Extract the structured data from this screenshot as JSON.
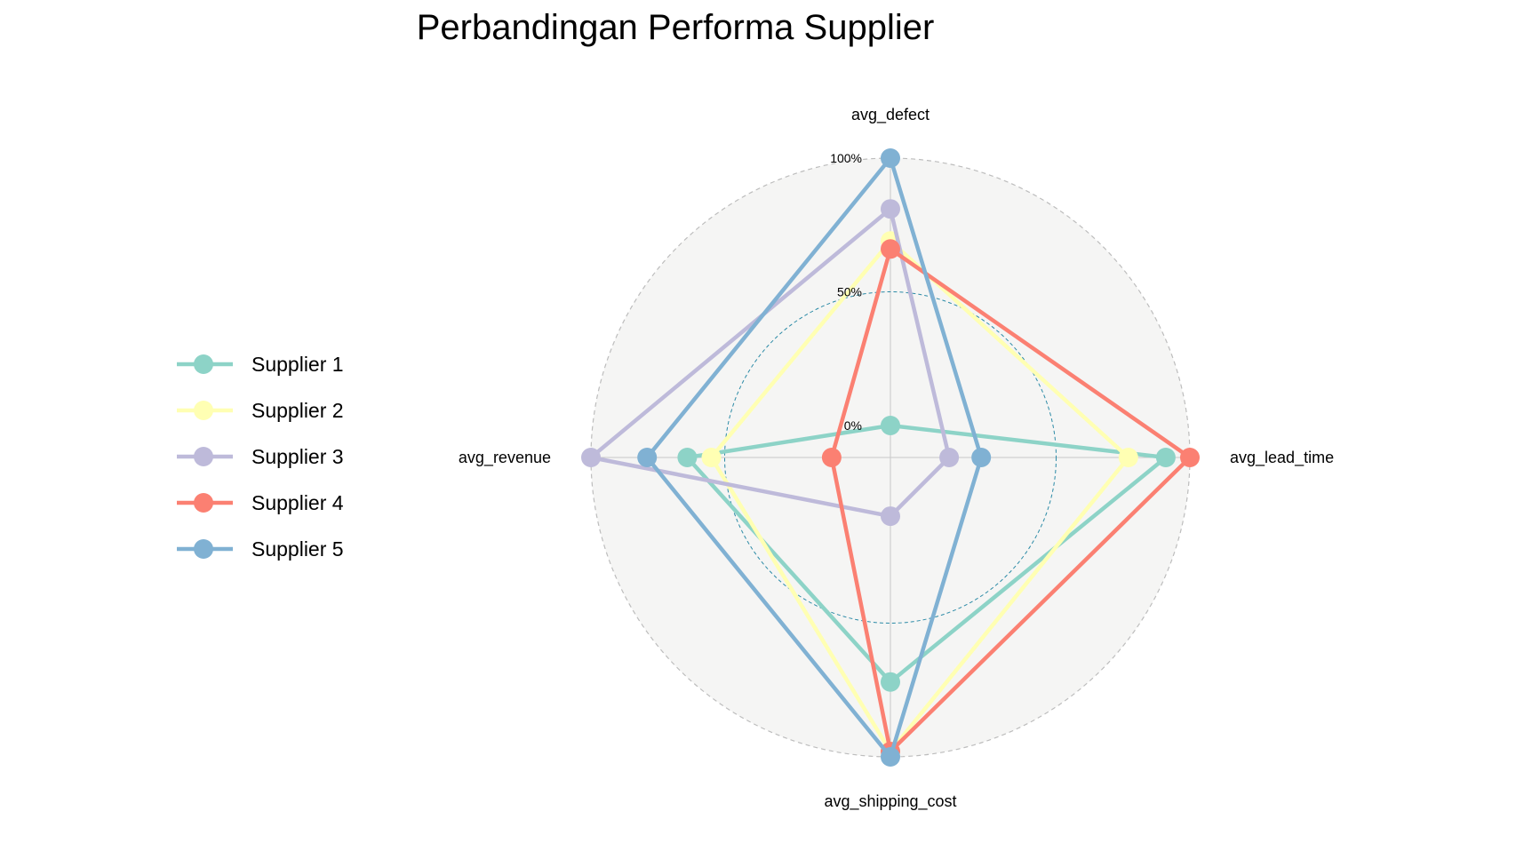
{
  "chart_data": {
    "type": "radar",
    "title": "Perbandingan Performa Supplier",
    "axes": [
      "avg_defect",
      "avg_lead_time",
      "avg_shipping_cost",
      "avg_revenue"
    ],
    "tick_labels": [
      "0%",
      "50%",
      "100%"
    ],
    "range": [
      0,
      100
    ],
    "grid": true,
    "legend_position": "left",
    "series": [
      {
        "name": "Supplier 1",
        "color": "#8dd3c7",
        "values": [
          0,
          91,
          72,
          64
        ]
      },
      {
        "name": "Supplier 2",
        "color": "#ffffb3",
        "values": [
          69,
          77,
          98,
          55
        ]
      },
      {
        "name": "Supplier 3",
        "color": "#bebada",
        "values": [
          81,
          10,
          10,
          100
        ]
      },
      {
        "name": "Supplier 4",
        "color": "#fb8072",
        "values": [
          66,
          100,
          98,
          10
        ]
      },
      {
        "name": "Supplier 5",
        "color": "#80b1d3",
        "values": [
          100,
          22,
          100,
          79
        ]
      }
    ]
  }
}
